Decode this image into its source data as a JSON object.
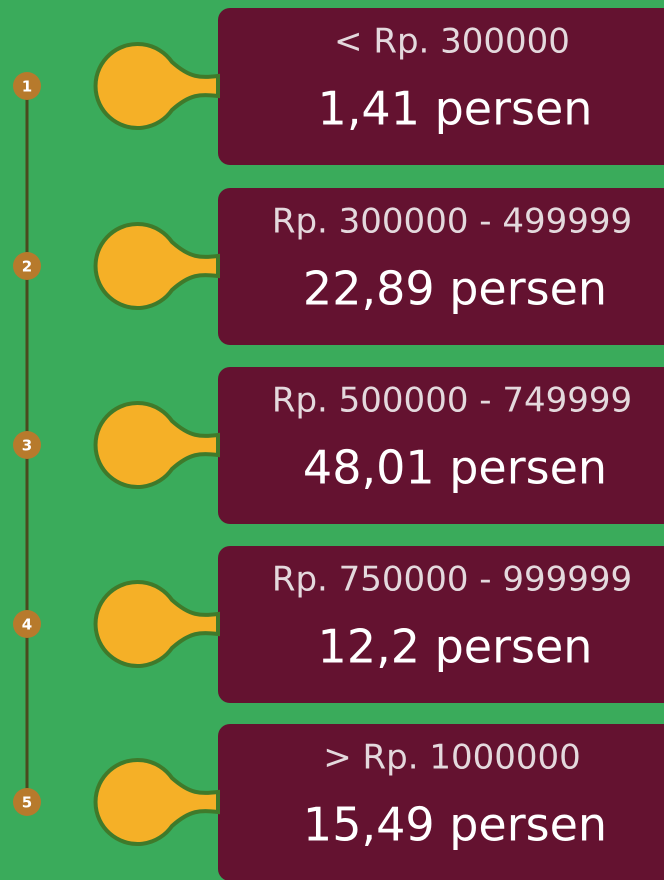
{
  "items": [
    {
      "number": "1",
      "range": "< Rp. 300000",
      "value": "1,41 persen"
    },
    {
      "number": "2",
      "range": "Rp. 300000 - 499999",
      "value": "22,89 persen"
    },
    {
      "number": "3",
      "range": "Rp. 500000 - 749999",
      "value": "48,01 persen"
    },
    {
      "number": "4",
      "range": "Rp. 750000 - 999999",
      "value": "12,2 persen"
    },
    {
      "number": "5",
      "range": "> Rp. 1000000",
      "value": "15,49 persen"
    }
  ]
}
